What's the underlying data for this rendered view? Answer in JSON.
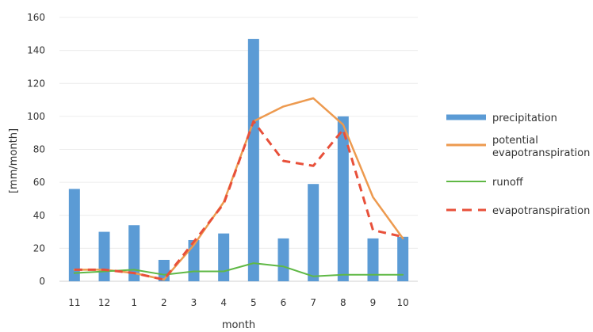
{
  "chart_data": {
    "type": "bar",
    "categories": [
      "11",
      "12",
      "1",
      "2",
      "3",
      "4",
      "5",
      "6",
      "7",
      "8",
      "9",
      "10"
    ],
    "series": [
      {
        "name": "precipitation",
        "kind": "bar",
        "color": "#5b9bd5",
        "values": [
          56,
          30,
          34,
          13,
          25,
          29,
          147,
          26,
          59,
          100,
          26,
          27
        ]
      },
      {
        "name": "potential evapotranspiration",
        "kind": "line",
        "color": "#ed9a4f",
        "values": [
          7,
          7,
          5,
          1,
          22,
          48,
          97,
          106,
          111,
          95,
          51,
          26
        ]
      },
      {
        "name": "runoff",
        "kind": "line",
        "color": "#5fb845",
        "values": [
          5,
          6,
          7,
          4,
          6,
          6,
          11,
          9,
          3,
          4,
          4,
          4
        ]
      },
      {
        "name": "evapotranspiration",
        "kind": "dashed-line",
        "color": "#e8503a",
        "values": [
          7,
          7,
          5,
          1,
          24,
          47,
          97,
          73,
          70,
          92,
          31,
          27
        ]
      }
    ],
    "xlabel": "month",
    "ylabel": "[mm/month]",
    "ylim": [
      0,
      160
    ],
    "yticks": [
      0,
      20,
      40,
      60,
      80,
      100,
      120,
      140,
      160
    ],
    "grid": true,
    "legend_position": "right"
  }
}
